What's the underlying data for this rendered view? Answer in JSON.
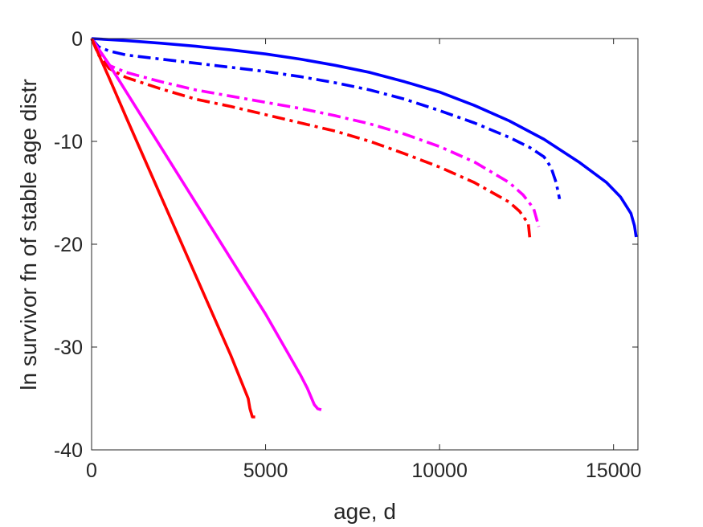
{
  "chart_data": {
    "type": "line",
    "title": "",
    "xlabel": "age, d",
    "ylabel": "ln survivor fn of stable age distr",
    "xlim": [
      0,
      15700
    ],
    "ylim": [
      -40,
      0
    ],
    "xticks": [
      0,
      5000,
      10000,
      15000
    ],
    "yticks": [
      0,
      -10,
      -20,
      -30,
      -40
    ],
    "xtick_labels": [
      "0",
      "5000",
      "10000",
      "15000"
    ],
    "ytick_labels": [
      "0",
      "-10",
      "-20",
      "-30",
      "-40"
    ],
    "grid": false,
    "legend": "none",
    "series": [
      {
        "color": "#0000ff",
        "style": "solid",
        "x": [
          0,
          1000,
          2000,
          3000,
          4000,
          5000,
          6000,
          7000,
          8000,
          9000,
          10000,
          11000,
          12000,
          13000,
          14000,
          14800,
          15200,
          15500,
          15600,
          15650
        ],
        "y": [
          0,
          -0.2,
          -0.45,
          -0.75,
          -1.1,
          -1.5,
          -2.0,
          -2.6,
          -3.3,
          -4.2,
          -5.2,
          -6.5,
          -8.0,
          -9.8,
          -12.0,
          -14.0,
          -15.4,
          -17.0,
          -18.2,
          -19.3
        ]
      },
      {
        "color": "#0000ff",
        "style": "dashdot",
        "x": [
          0,
          200,
          500,
          1000,
          2000,
          3000,
          4000,
          5000,
          6000,
          7000,
          8000,
          9000,
          10000,
          11000,
          12000,
          12600,
          13000,
          13200,
          13350,
          13450
        ],
        "y": [
          0,
          -0.8,
          -1.2,
          -1.6,
          -2.0,
          -2.4,
          -2.8,
          -3.2,
          -3.7,
          -4.3,
          -5.0,
          -5.9,
          -7.0,
          -8.2,
          -9.6,
          -10.6,
          -11.5,
          -12.5,
          -14.0,
          -15.6
        ]
      },
      {
        "color": "#ff00ff",
        "style": "dashdot",
        "x": [
          0,
          200,
          500,
          1000,
          2000,
          3000,
          4000,
          5000,
          6000,
          7000,
          8000,
          9000,
          10000,
          11000,
          12000,
          12400,
          12700,
          12850
        ],
        "y": [
          0,
          -1.5,
          -2.6,
          -3.3,
          -4.2,
          -5.0,
          -5.6,
          -6.2,
          -6.8,
          -7.5,
          -8.3,
          -9.3,
          -10.5,
          -12.0,
          -14.0,
          -15.2,
          -16.5,
          -18.3
        ]
      },
      {
        "color": "#ff0000",
        "style": "dashdot",
        "x": [
          0,
          200,
          500,
          1000,
          2000,
          3000,
          4000,
          5000,
          6000,
          7000,
          8000,
          9000,
          10000,
          11000,
          12000,
          12300,
          12550,
          12600
        ],
        "y": [
          0,
          -1.6,
          -2.9,
          -3.8,
          -4.9,
          -5.9,
          -6.6,
          -7.4,
          -8.2,
          -9.0,
          -10.0,
          -11.2,
          -12.5,
          -14.0,
          -15.9,
          -16.8,
          -18.0,
          -19.6
        ]
      },
      {
        "color": "#ff00ff",
        "style": "solid",
        "x": [
          0,
          500,
          1000,
          2000,
          3000,
          4000,
          5000,
          6000,
          6200,
          6400,
          6500,
          6600
        ],
        "y": [
          0,
          -2.5,
          -5.2,
          -10.6,
          -16.0,
          -21.4,
          -26.8,
          -32.7,
          -34.0,
          -35.6,
          -36.0,
          -36.1
        ]
      },
      {
        "color": "#ff0000",
        "style": "solid",
        "x": [
          0,
          500,
          1000,
          2000,
          3000,
          4000,
          4500,
          4550,
          4620,
          4700
        ],
        "y": [
          0,
          -3.8,
          -7.7,
          -15.4,
          -23.1,
          -30.8,
          -35.0,
          -36.0,
          -36.8,
          -36.8
        ]
      }
    ]
  }
}
